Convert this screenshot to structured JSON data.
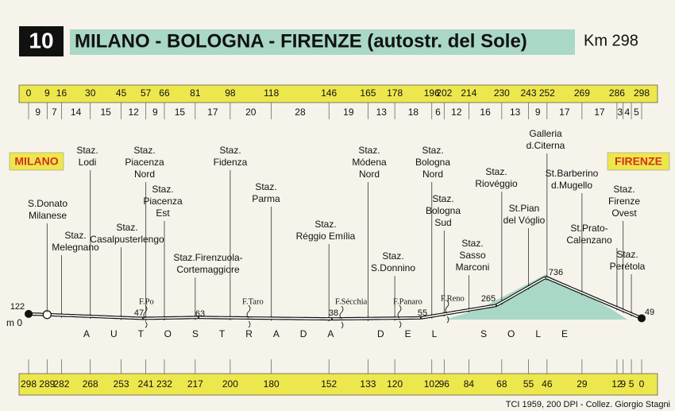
{
  "header": {
    "number": "10",
    "title": "MILANO - BOLOGNA - FIRENZE (autostr. del Sole)",
    "distance": "Km 298"
  },
  "km_from_start": [
    0,
    9,
    16,
    30,
    45,
    57,
    66,
    81,
    98,
    118,
    146,
    165,
    178,
    196,
    202,
    214,
    230,
    243,
    252,
    269,
    286,
    null,
    null,
    298
  ],
  "segments": [
    9,
    7,
    14,
    15,
    12,
    9,
    15,
    17,
    20,
    28,
    19,
    13,
    18,
    6,
    12,
    16,
    13,
    9,
    17,
    17,
    3,
    4,
    5
  ],
  "km_to_end": [
    298,
    289,
    282,
    268,
    253,
    241,
    232,
    217,
    200,
    180,
    152,
    133,
    120,
    102,
    96,
    84,
    68,
    55,
    46,
    29,
    12,
    9,
    5,
    0
  ],
  "cities": [
    "MILANO",
    "FIRENZE"
  ],
  "stations": [
    {
      "lines": [
        "S.Donato",
        "Milanese"
      ]
    },
    {
      "lines": [
        "Staz.",
        "Melegnano"
      ]
    },
    {
      "lines": [
        "Staz.",
        "Lodi"
      ]
    },
    {
      "lines": [
        "Staz.",
        "Casalpusterlengo"
      ]
    },
    {
      "lines": [
        "Staz.",
        "Piacenza",
        "Nord"
      ]
    },
    {
      "lines": [
        "Staz.",
        "Piacenza",
        "Est"
      ]
    },
    {
      "lines": [
        "Staz.Firenzuola-",
        "Cortemaggiore"
      ]
    },
    {
      "lines": [
        "Staz.",
        "Fidenza"
      ]
    },
    {
      "lines": [
        "Staz.",
        "Parma"
      ]
    },
    {
      "lines": [
        "Staz.",
        "Réggio Emília"
      ]
    },
    {
      "lines": [
        "Staz.",
        "Módena",
        "Nord"
      ]
    },
    {
      "lines": [
        "Staz.",
        "S.Donnino"
      ]
    },
    {
      "lines": [
        "Staz.",
        "Bologna",
        "Nord"
      ]
    },
    {
      "lines": [
        "Staz.",
        "Bologna",
        "Sud"
      ]
    },
    {
      "lines": [
        "Staz.",
        "Sasso",
        "Marconi"
      ]
    },
    {
      "lines": [
        "Staz.",
        "Riovéggio"
      ]
    },
    {
      "lines": [
        "St.Pian",
        "del Vóglio"
      ]
    },
    {
      "lines": [
        "Galleria",
        "d.Citerna"
      ]
    },
    {
      "lines": [
        "St.Barberino",
        "d.Mugello"
      ]
    },
    {
      "lines": [
        "St.Prato-",
        "Calenzano"
      ]
    },
    {
      "lines": [
        "Staz.",
        "Firenze",
        "Ovest"
      ]
    },
    {
      "lines": [
        "Staz.",
        "Perétola"
      ]
    }
  ],
  "rivers": [
    "F.Po",
    "F.Taro",
    "F.Sécchia",
    "F.Panaro",
    "F.Reno"
  ],
  "elevations": [
    122,
    47,
    63,
    38,
    55,
    265,
    736,
    49
  ],
  "baseline": "m 0",
  "road_name": "AUTOSTRADA DEL SOLE",
  "credit": "TCI 1959, 200 DPI - Collez. Giorgio Stagni"
}
